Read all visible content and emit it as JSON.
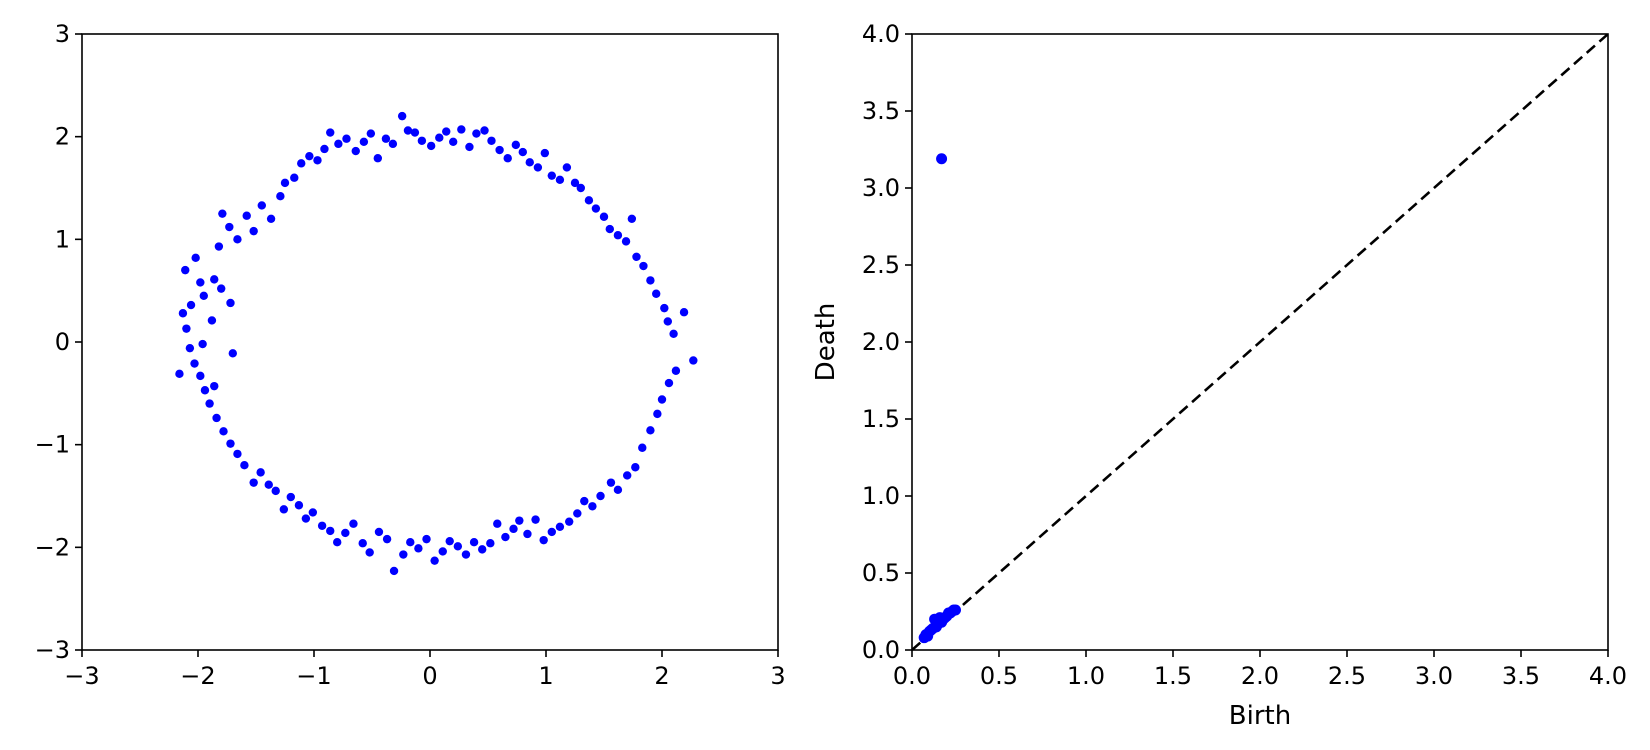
{
  "chart_data": [
    {
      "type": "scatter",
      "title": "",
      "xlabel": "",
      "ylabel": "",
      "xlim": [
        -3,
        3
      ],
      "ylim": [
        -3,
        3
      ],
      "xticks": [
        -3,
        -2,
        -1,
        0,
        1,
        2,
        3
      ],
      "yticks": [
        -3,
        -2,
        -1,
        0,
        1,
        2,
        3
      ],
      "xtick_labels": [
        "−3",
        "−2",
        "−1",
        "0",
        "1",
        "2",
        "3"
      ],
      "ytick_labels": [
        "−3",
        "−2",
        "−1",
        "0",
        "1",
        "2",
        "3"
      ],
      "grid": false,
      "legend": "none",
      "marker_color": "#0000ff",
      "points": [
        [
          -2.11,
          0.7
        ],
        [
          -2.02,
          0.82
        ],
        [
          -1.98,
          0.58
        ],
        [
          -1.95,
          0.45
        ],
        [
          -1.86,
          0.61
        ],
        [
          -1.82,
          0.93
        ],
        [
          -1.79,
          1.25
        ],
        [
          -1.73,
          1.12
        ],
        [
          -1.66,
          1.0
        ],
        [
          -1.58,
          1.23
        ],
        [
          -1.52,
          1.08
        ],
        [
          -1.45,
          1.33
        ],
        [
          -1.37,
          1.2
        ],
        [
          -1.29,
          1.42
        ],
        [
          -1.25,
          1.55
        ],
        [
          -1.17,
          1.6
        ],
        [
          -1.11,
          1.74
        ],
        [
          -1.04,
          1.81
        ],
        [
          -0.97,
          1.77
        ],
        [
          -0.91,
          1.88
        ],
        [
          -0.86,
          2.04
        ],
        [
          -0.79,
          1.93
        ],
        [
          -0.72,
          1.98
        ],
        [
          -0.64,
          1.86
        ],
        [
          -0.57,
          1.95
        ],
        [
          -0.51,
          2.03
        ],
        [
          -0.45,
          1.79
        ],
        [
          -0.38,
          1.98
        ],
        [
          -0.32,
          1.93
        ],
        [
          -0.24,
          2.2
        ],
        [
          -0.19,
          2.06
        ],
        [
          -0.13,
          2.04
        ],
        [
          -0.07,
          1.96
        ],
        [
          0.01,
          1.91
        ],
        [
          0.08,
          1.99
        ],
        [
          0.14,
          2.05
        ],
        [
          0.2,
          1.95
        ],
        [
          0.27,
          2.07
        ],
        [
          0.34,
          1.9
        ],
        [
          0.4,
          2.03
        ],
        [
          0.47,
          2.06
        ],
        [
          0.53,
          1.96
        ],
        [
          0.6,
          1.87
        ],
        [
          0.67,
          1.79
        ],
        [
          0.74,
          1.92
        ],
        [
          0.8,
          1.85
        ],
        [
          0.86,
          1.75
        ],
        [
          0.93,
          1.7
        ],
        [
          0.99,
          1.84
        ],
        [
          1.05,
          1.62
        ],
        [
          1.12,
          1.58
        ],
        [
          1.18,
          1.7
        ],
        [
          1.25,
          1.55
        ],
        [
          1.3,
          1.5
        ],
        [
          1.37,
          1.38
        ],
        [
          1.43,
          1.3
        ],
        [
          1.5,
          1.22
        ],
        [
          1.55,
          1.1
        ],
        [
          1.62,
          1.04
        ],
        [
          1.69,
          0.98
        ],
        [
          1.74,
          1.2
        ],
        [
          1.78,
          0.83
        ],
        [
          1.84,
          0.74
        ],
        [
          1.9,
          0.6
        ],
        [
          1.95,
          0.47
        ],
        [
          2.02,
          0.33
        ],
        [
          2.05,
          0.2
        ],
        [
          2.1,
          0.08
        ],
        [
          2.19,
          0.29
        ],
        [
          2.27,
          -0.18
        ],
        [
          2.12,
          -0.28
        ],
        [
          2.06,
          -0.4
        ],
        [
          2.0,
          -0.56
        ],
        [
          1.96,
          -0.7
        ],
        [
          1.9,
          -0.86
        ],
        [
          1.83,
          -1.03
        ],
        [
          1.77,
          -1.22
        ],
        [
          1.7,
          -1.3
        ],
        [
          1.62,
          -1.44
        ],
        [
          1.56,
          -1.37
        ],
        [
          1.47,
          -1.5
        ],
        [
          1.4,
          -1.6
        ],
        [
          1.33,
          -1.55
        ],
        [
          1.27,
          -1.67
        ],
        [
          1.2,
          -1.75
        ],
        [
          1.12,
          -1.8
        ],
        [
          1.05,
          -1.85
        ],
        [
          0.98,
          -1.93
        ],
        [
          0.91,
          -1.73
        ],
        [
          0.84,
          -1.87
        ],
        [
          0.77,
          -1.74
        ],
        [
          0.72,
          -1.82
        ],
        [
          0.65,
          -1.9
        ],
        [
          0.58,
          -1.77
        ],
        [
          0.52,
          -1.96
        ],
        [
          0.45,
          -2.02
        ],
        [
          0.38,
          -1.95
        ],
        [
          0.31,
          -2.07
        ],
        [
          0.24,
          -1.99
        ],
        [
          0.17,
          -1.94
        ],
        [
          0.11,
          -2.04
        ],
        [
          0.04,
          -2.13
        ],
        [
          -0.03,
          -1.92
        ],
        [
          -0.1,
          -2.01
        ],
        [
          -0.17,
          -1.95
        ],
        [
          -0.23,
          -2.07
        ],
        [
          -0.31,
          -2.23
        ],
        [
          -0.37,
          -1.92
        ],
        [
          -0.44,
          -1.85
        ],
        [
          -0.52,
          -2.05
        ],
        [
          -0.58,
          -1.96
        ],
        [
          -0.66,
          -1.77
        ],
        [
          -0.73,
          -1.86
        ],
        [
          -0.8,
          -1.95
        ],
        [
          -0.86,
          -1.84
        ],
        [
          -0.93,
          -1.79
        ],
        [
          -1.01,
          -1.66
        ],
        [
          -1.07,
          -1.72
        ],
        [
          -1.13,
          -1.59
        ],
        [
          -1.2,
          -1.51
        ],
        [
          -1.26,
          -1.63
        ],
        [
          -1.33,
          -1.45
        ],
        [
          -1.39,
          -1.39
        ],
        [
          -1.46,
          -1.27
        ],
        [
          -1.52,
          -1.37
        ],
        [
          -1.6,
          -1.2
        ],
        [
          -1.66,
          -1.09
        ],
        [
          -1.72,
          -0.99
        ],
        [
          -1.78,
          -0.87
        ],
        [
          -1.84,
          -0.74
        ],
        [
          -1.9,
          -0.6
        ],
        [
          -1.94,
          -0.47
        ],
        [
          -1.98,
          -0.33
        ],
        [
          -2.03,
          -0.21
        ],
        [
          -2.07,
          -0.06
        ],
        [
          -2.1,
          0.13
        ],
        [
          -2.13,
          0.28
        ],
        [
          -2.16,
          -0.31
        ],
        [
          -2.06,
          0.36
        ],
        [
          -1.86,
          -0.43
        ],
        [
          -1.72,
          0.38
        ],
        [
          -1.7,
          -0.11
        ],
        [
          -1.8,
          0.52
        ],
        [
          -1.88,
          0.21
        ],
        [
          -1.96,
          -0.02
        ]
      ]
    },
    {
      "type": "scatter",
      "title": "",
      "xlabel": "Birth",
      "ylabel": "Death",
      "xlim": [
        0.0,
        4.0
      ],
      "ylim": [
        0.0,
        4.0
      ],
      "xticks": [
        0.0,
        0.5,
        1.0,
        1.5,
        2.0,
        2.5,
        3.0,
        3.5,
        4.0
      ],
      "yticks": [
        0.0,
        0.5,
        1.0,
        1.5,
        2.0,
        2.5,
        3.0,
        3.5,
        4.0
      ],
      "xtick_labels": [
        "0.0",
        "0.5",
        "1.0",
        "1.5",
        "2.0",
        "2.5",
        "3.0",
        "3.5",
        "4.0"
      ],
      "ytick_labels": [
        "0.0",
        "0.5",
        "1.0",
        "1.5",
        "2.0",
        "2.5",
        "3.0",
        "3.5",
        "4.0"
      ],
      "grid": false,
      "legend": "none",
      "marker_color": "#0000ff",
      "diagonal": {
        "from": [
          0.0,
          0.0
        ],
        "to": [
          4.0,
          4.0
        ],
        "style": "dashed",
        "color": "#000000"
      },
      "points": [
        [
          0.17,
          3.19
        ],
        [
          0.07,
          0.08
        ],
        [
          0.08,
          0.1
        ],
        [
          0.09,
          0.09
        ],
        [
          0.1,
          0.12
        ],
        [
          0.11,
          0.13
        ],
        [
          0.12,
          0.14
        ],
        [
          0.13,
          0.2
        ],
        [
          0.14,
          0.15
        ],
        [
          0.15,
          0.17
        ],
        [
          0.16,
          0.21
        ],
        [
          0.17,
          0.18
        ],
        [
          0.18,
          0.2
        ],
        [
          0.19,
          0.21
        ],
        [
          0.2,
          0.22
        ],
        [
          0.21,
          0.24
        ],
        [
          0.22,
          0.24
        ],
        [
          0.23,
          0.25
        ],
        [
          0.24,
          0.26
        ],
        [
          0.25,
          0.26
        ]
      ]
    }
  ]
}
